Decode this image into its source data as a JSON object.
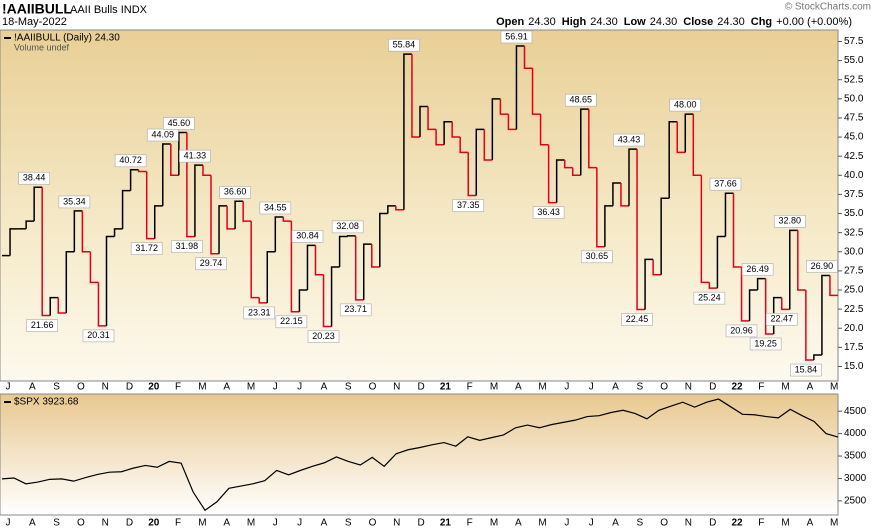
{
  "header": {
    "symbol": "!AAIIBULL",
    "name": "AAII Bulls INDX",
    "date": "18-May-2022",
    "copyright": "© StockCharts.com",
    "quote": [
      {
        "label": "Open",
        "value": "24.30"
      },
      {
        "label": "High",
        "value": "24.30"
      },
      {
        "label": "Low",
        "value": "24.30"
      },
      {
        "label": "Close",
        "value": "24.30"
      },
      {
        "label": "Chg",
        "value": "+0.00 (+0.00%)"
      }
    ]
  },
  "chart_data": [
    {
      "type": "step",
      "legend_label": "!AAIIBULL (Daily) 24.30",
      "note": "Volume undef",
      "color": "#000000",
      "down_color": "#e0001b",
      "values": [
        29.5,
        33,
        33,
        34,
        38.44,
        21.66,
        24,
        22,
        30,
        35.34,
        30,
        26,
        20.31,
        32,
        33,
        38,
        40.72,
        40.5,
        31.72,
        36,
        44.09,
        40,
        45.6,
        31.98,
        41.33,
        40,
        29.74,
        36,
        33,
        36.6,
        34,
        24,
        23.31,
        30,
        34.55,
        34,
        22.15,
        25,
        30.84,
        27,
        20.23,
        28,
        32,
        32.08,
        23.71,
        31,
        28,
        35,
        36,
        35.5,
        55.84,
        45,
        49,
        46,
        44,
        47,
        45,
        43,
        37.35,
        46,
        42,
        50,
        48,
        46,
        56.91,
        54,
        48,
        44,
        36.43,
        42,
        41,
        40,
        48.65,
        41,
        30.65,
        36,
        39,
        36,
        43.43,
        22.45,
        29,
        27,
        37,
        47,
        43,
        48.0,
        40,
        26,
        25.24,
        32,
        37.66,
        28,
        20.96,
        25,
        26.49,
        19.25,
        24,
        22.47,
        32.8,
        25,
        15.84,
        16.5,
        26.9,
        24.3
      ],
      "value_labels": [
        null,
        null,
        null,
        null,
        "38.44",
        "21.66",
        null,
        null,
        null,
        "35.34",
        null,
        null,
        "20.31",
        null,
        null,
        null,
        "40.72",
        null,
        "31.72",
        null,
        "44.09",
        null,
        "45.60",
        "31.98",
        "41.33",
        null,
        "29.74",
        null,
        null,
        "36.60",
        null,
        null,
        "23.31",
        null,
        "34.55",
        null,
        "22.15",
        null,
        "30.84",
        null,
        "20.23",
        null,
        null,
        "32.08",
        "23.71",
        null,
        null,
        null,
        null,
        null,
        "55.84",
        null,
        null,
        null,
        null,
        null,
        null,
        null,
        "37.35",
        null,
        null,
        null,
        null,
        null,
        "56.91",
        null,
        null,
        null,
        "36.43",
        null,
        null,
        null,
        "48.65",
        null,
        "30.65",
        null,
        null,
        null,
        "43.43",
        "22.45",
        null,
        null,
        null,
        null,
        null,
        "48.00",
        null,
        null,
        "25.24",
        null,
        "37.66",
        null,
        "20.96",
        null,
        "26.49",
        "19.25",
        null,
        "22.47",
        "32.80",
        null,
        "15.84",
        null,
        "26.90",
        null
      ],
      "ylim": [
        13.1,
        59.0
      ],
      "yticks": [
        {
          "value": 15,
          "label": "15.0"
        },
        17.5,
        {
          "value": 20,
          "label": "20.0"
        },
        22.5,
        {
          "value": 25,
          "label": "25.0"
        },
        27.5,
        {
          "value": 30,
          "label": "30.0"
        },
        32.5,
        {
          "value": 35,
          "label": "35.0"
        },
        37.5,
        {
          "value": 40,
          "label": "40.0"
        },
        42.5,
        {
          "value": 45,
          "label": "45.0"
        },
        47.5,
        {
          "value": 50,
          "label": "50.0"
        },
        52.5,
        {
          "value": 55,
          "label": "55.0"
        },
        57.5
      ],
      "xtick_labels": [
        "J",
        "A",
        "S",
        "O",
        "N",
        "D",
        "20",
        "F",
        "M",
        "A",
        "M",
        "J",
        "J",
        "A",
        "S",
        "O",
        "N",
        "D",
        "21",
        "F",
        "M",
        "A",
        "M",
        "J",
        "J",
        "A",
        "S",
        "O",
        "N",
        "D",
        "22",
        "F",
        "M",
        "A",
        "M"
      ]
    },
    {
      "type": "line",
      "legend_label": "$SPX 3923.68",
      "color": "#000000",
      "values": [
        2990,
        3010,
        2880,
        2920,
        2980,
        2990,
        2940,
        3020,
        3090,
        3140,
        3150,
        3230,
        3290,
        3250,
        3380,
        3340,
        2700,
        2290,
        2480,
        2780,
        2830,
        2880,
        2950,
        3180,
        3080,
        3180,
        3270,
        3350,
        3480,
        3380,
        3300,
        3470,
        3270,
        3550,
        3640,
        3690,
        3750,
        3800,
        3720,
        3930,
        3850,
        3910,
        3970,
        4130,
        4190,
        4130,
        4200,
        4250,
        4300,
        4380,
        4400,
        4470,
        4520,
        4450,
        4330,
        4520,
        4610,
        4700,
        4590,
        4700,
        4770,
        4600,
        4430,
        4420,
        4380,
        4350,
        4540,
        4400,
        4270,
        4000,
        3923.68
      ],
      "ylim": [
        2185,
        4883
      ],
      "yticks": [
        2500,
        3000,
        3500,
        4000,
        4500
      ],
      "xtick_labels": [
        "J",
        "A",
        "S",
        "O",
        "N",
        "D",
        "20",
        "F",
        "M",
        "A",
        "M",
        "J",
        "J",
        "A",
        "S",
        "O",
        "N",
        "D",
        "21",
        "F",
        "M",
        "A",
        "M",
        "J",
        "J",
        "A",
        "S",
        "O",
        "N",
        "D",
        "22",
        "F",
        "M",
        "A",
        "M"
      ]
    }
  ]
}
